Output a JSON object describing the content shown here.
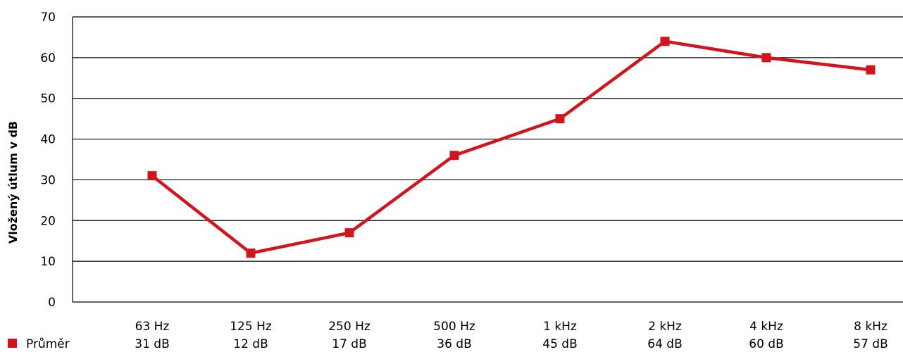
{
  "chart_data": {
    "type": "line",
    "ylabel": "Vložený útlum v dB",
    "xlabel": "",
    "ylim": [
      0,
      70
    ],
    "yticks": [
      0,
      10,
      20,
      30,
      40,
      50,
      60,
      70
    ],
    "grid": true,
    "legend_position": "bottom-left",
    "categories": [
      "63 Hz",
      "125 Hz",
      "250 Hz",
      "500 Hz",
      "1 kHz",
      "2 kHz",
      "4 kHz",
      "8 kHz"
    ],
    "series": [
      {
        "name": "Průměr",
        "color": "#d2141e",
        "values": [
          31,
          12,
          17,
          36,
          45,
          64,
          60,
          57
        ],
        "table_labels": [
          "31 dB",
          "12 dB",
          "17 dB",
          "36 dB",
          "45 dB",
          "64 dB",
          "60 dB",
          "57 dB"
        ]
      }
    ]
  }
}
